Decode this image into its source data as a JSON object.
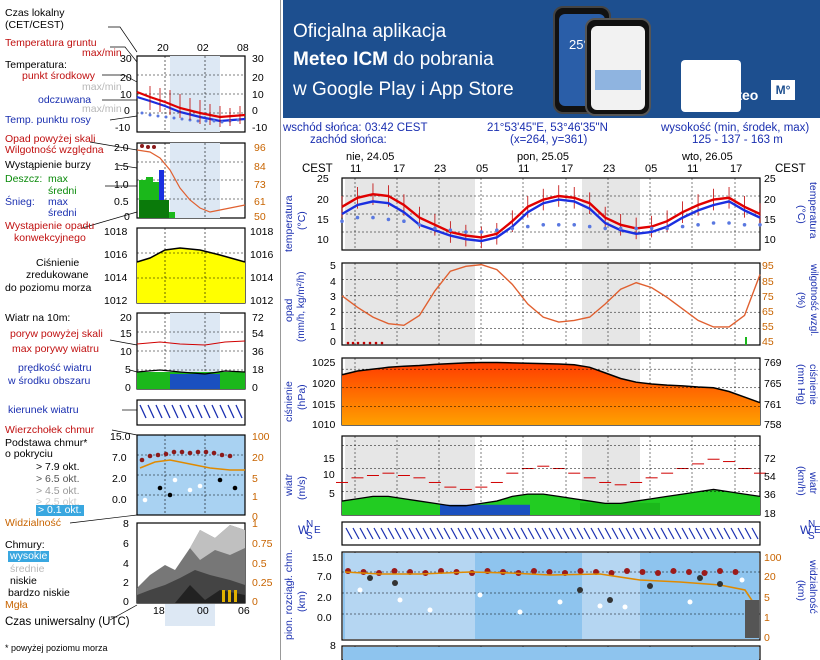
{
  "legend": {
    "local_time": "Czas lokalny",
    "cet_cest": "(CET/CEST)",
    "soil_temp": "Temperatura gruntu",
    "max_min_1": "max/min",
    "temperature": "Temperatura:",
    "mid_point": "punkt środkowy",
    "max_min_2": "max/min",
    "feels_like": "odczuwana",
    "max_min_3": "max/min",
    "dew_point": "Temp. punktu rosy",
    "precip_above": "Opad powyżej skali",
    "rel_humidity": "Wilgotność względna",
    "storm": "Wystąpienie burzy",
    "rain": "Deszcz:",
    "max_a": "max",
    "avg_a": "średni",
    "snow": "Śnieg:",
    "max_b": "max",
    "avg_b": "średni",
    "conv_precip_1": "Wystąpienie opadu",
    "conv_precip_2": "konwekcyjnego",
    "pressure_1": "Ciśnienie",
    "pressure_2": "zredukowane",
    "pressure_3": "do poziomu morza",
    "wind_10m": "Wiatr na 10m:",
    "gust_above": "poryw powyżej skali",
    "max_gust": "max porywy wiatru",
    "wind_speed_1": "prędkość wiatru",
    "wind_speed_2": "w środku obszaru",
    "wind_dir": "kierunek wiatru",
    "cloud_top": "Wierzchołek chmur",
    "cloud_base_1": "Podstawa chmur*",
    "cloud_base_2": "o pokryciu",
    "okt1": "> 7.9 okt.",
    "okt2": "> 6.5 okt.",
    "okt3": "> 4.5 okt.",
    "okt4": "> 2.5 okt.",
    "okt5": "> 0.1 okt.",
    "visibility": "Widzialność",
    "clouds": "Chmury:",
    "high": "wysokie",
    "middle": "średnie",
    "low": "niskie",
    "very_low": "bardzo niskie",
    "fog": "Mgła",
    "utc": "Czas uniwersalny (UTC)",
    "footnote": "* powyżej poziomu morza"
  },
  "legend_ticks": {
    "local": [
      "20",
      "02",
      "08"
    ],
    "utc": [
      "18",
      "00",
      "06"
    ],
    "temp_l": [
      "30",
      "20",
      "10",
      "0",
      "-10"
    ],
    "temp_r": [
      "30",
      "20",
      "10",
      "0",
      "-10"
    ],
    "precip_l": [
      "2.0",
      "1.5",
      "1.0",
      "0.5",
      "0"
    ],
    "precip_r": [
      "96",
      "84",
      "73",
      "61",
      "50"
    ],
    "pres": [
      "1018",
      "1016",
      "1014",
      "1012"
    ],
    "wind_l": [
      "20",
      "15",
      "10",
      "5",
      "0"
    ],
    "wind_r": [
      "72",
      "54",
      "36",
      "18",
      "0"
    ],
    "cloud_l": [
      "15.0",
      "7.0",
      "2.0",
      "0.0"
    ],
    "cloud_r": [
      "100",
      "20",
      "5",
      "1",
      "0"
    ],
    "cl_l": [
      "8",
      "6",
      "4",
      "2",
      "0"
    ],
    "cl_r": [
      "1",
      "0.75",
      "0.5",
      "0.25",
      "0"
    ]
  },
  "banner": {
    "line1": "Oficjalna aplikacja",
    "line2a": "Meteo ICM",
    "line2b": " do pobrania",
    "line3": "w Google Play i App Store",
    "logo": "icmmeteo",
    "logo_badge": "M°",
    "phone_temp": "25°"
  },
  "header": {
    "sunrise": "wschód słońca: 03:42 CEST",
    "sunset": "zachód słońca:",
    "coords": "21°53'45\"E, 53°46'35\"N",
    "grid": "(x=264,  y=361)",
    "alt_label": "wysokość (min, środek, max)",
    "alt_value": "125 - 137 - 163 m"
  },
  "days": [
    "nie, 24.05",
    "pon, 25.05",
    "wto, 26.05"
  ],
  "time_labels": [
    "CEST",
    "11",
    "17",
    "23",
    "05",
    "11",
    "17",
    "23",
    "05",
    "11",
    "17",
    "CEST"
  ],
  "panels": {
    "temp": {
      "left_label": "temperatura",
      "left_unit": "(°C)",
      "right_label": "temperatura",
      "right_unit": "(°C)",
      "ticks": [
        "25",
        "20",
        "15",
        "10"
      ]
    },
    "precip": {
      "left_label": "opad",
      "left_unit": "(mm/h, kg/m²/h)",
      "right_label": "wilgotność wzgl.",
      "right_unit": "(%)",
      "ticks_l": [
        "5",
        "4",
        "3",
        "2",
        "1",
        "0"
      ],
      "ticks_r": [
        "95",
        "85",
        "75",
        "65",
        "55",
        "45"
      ]
    },
    "pressure": {
      "left_label": "ciśnienie",
      "left_unit": "(hPa)",
      "right_label": "ciśnienie",
      "right_unit": "(mm Hg)",
      "ticks_l": [
        "1025",
        "1020",
        "1015",
        "1010"
      ],
      "ticks_r": [
        "769",
        "765",
        "761",
        "758"
      ]
    },
    "wind": {
      "left_label": "wiatr",
      "left_unit": "(m/s)",
      "right_label": "wiatr",
      "right_unit": "(km/h)",
      "ticks_l": [
        "15",
        "10",
        "5"
      ],
      "ticks_r": [
        "72",
        "54",
        "36",
        "18"
      ]
    },
    "cloud": {
      "left_label": "pion. rozciągł. chm.",
      "left_unit": "(km)",
      "right_label": "widzialność",
      "right_unit": "(km)",
      "ticks_l": [
        "15.0",
        "7.0",
        "2.0",
        "0.0"
      ],
      "ticks_r": [
        "100",
        "20",
        "5",
        "1",
        "0"
      ]
    },
    "bottom": {
      "tick": "8"
    }
  },
  "compass": {
    "w": "W",
    "s": "S",
    "n": "N",
    "e": "E"
  },
  "colors": {
    "banner": "#1d4f8f",
    "temp_red": "#e00000",
    "feels_blue": "#1a2fe0",
    "dew": "#5a78e0",
    "humidity": "#e06030",
    "pressure_fill": "#ff5a00",
    "wind_green": "#22cc22",
    "wind_blue": "#1a50c0",
    "sky": "#8ec4ee"
  },
  "chart_data": [
    {
      "type": "line",
      "title": "temperatura",
      "ylabel": "(°C)",
      "ylim": [
        5,
        25
      ],
      "series": [
        {
          "name": "temperatura",
          "values": [
            17,
            19.5,
            20.5,
            20,
            17.5,
            14,
            12,
            10,
            9,
            8.5,
            9.5,
            13,
            17,
            19,
            20,
            19.5,
            18,
            14,
            12,
            11,
            11.5,
            13,
            15.5,
            17.5,
            19,
            19.5,
            17,
            15
          ]
        },
        {
          "name": "odczuwana",
          "values": [
            15,
            17.5,
            18.5,
            18,
            15.5,
            12,
            10.5,
            9,
            8,
            7.5,
            8.5,
            11.5,
            15.5,
            18,
            19,
            18.5,
            16.5,
            12.5,
            10.5,
            9.5,
            10,
            11.5,
            14,
            16,
            17.5,
            18.5,
            16,
            14
          ]
        },
        {
          "name": "Temp. punktu rosy",
          "values": [
            13,
            14,
            14,
            13.5,
            13,
            12,
            11,
            10.5,
            10,
            10,
            10.5,
            11,
            11.5,
            12,
            12,
            12,
            11.5,
            11,
            11,
            11,
            11,
            11,
            11.5,
            12,
            12.5,
            12.5,
            12,
            12
          ]
        }
      ]
    },
    {
      "type": "line",
      "title": "wilgotność wzgl.",
      "ylabel": "(%)",
      "ylim": [
        45,
        95
      ],
      "values": [
        75,
        68,
        62,
        58,
        57,
        63,
        78,
        90,
        93,
        94,
        91,
        82,
        70,
        62,
        59,
        60,
        62,
        70,
        79,
        83,
        80,
        74,
        67,
        60,
        56,
        56,
        63,
        88
      ]
    },
    {
      "type": "area",
      "title": "ciśnienie",
      "ylabel": "(hPa)",
      "ylim": [
        1010,
        1028
      ],
      "values": [
        1023.5,
        1024.5,
        1025,
        1025.5,
        1025.8,
        1026,
        1026.3,
        1026.5,
        1026.7,
        1026.8,
        1026.8,
        1026.7,
        1026.6,
        1026.5,
        1026.4,
        1026.2,
        1025.5,
        1024,
        1022.5,
        1021.5,
        1021,
        1020.7,
        1020.5,
        1020.2,
        1020,
        1019,
        1017.5,
        1016
      ]
    },
    {
      "type": "area",
      "title": "wiatr",
      "ylabel": "(m/s)",
      "ylim": [
        0,
        17
      ],
      "series": [
        {
          "name": "prędkość wiatru",
          "values": [
            3,
            3.5,
            4,
            4,
            3.5,
            3,
            2.5,
            2,
            2,
            2.5,
            3,
            4,
            4.5,
            4.5,
            4,
            3.5,
            3,
            2.5,
            2.5,
            3,
            3.5,
            4,
            4.5,
            5,
            5.5,
            5,
            4.5,
            4
          ]
        },
        {
          "name": "max porywy wiatru",
          "values": [
            7,
            8,
            8.5,
            9,
            8.5,
            8,
            7,
            6,
            5.5,
            6,
            7,
            9,
            10,
            10.5,
            10,
            9,
            8,
            7,
            6.5,
            7,
            8,
            9,
            10,
            11,
            12,
            11.5,
            10,
            9
          ]
        }
      ]
    }
  ]
}
